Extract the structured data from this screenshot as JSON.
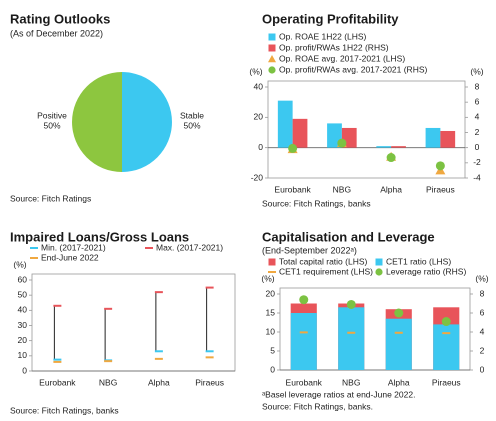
{
  "chart_data": [
    {
      "type": "pie",
      "title": "Rating Outlooks",
      "subtitle": "(As of December 2022)",
      "categories": [
        "Stable",
        "Positive"
      ],
      "values": [
        50,
        50
      ],
      "value_labels": [
        "50%",
        "50%"
      ],
      "colors": [
        "#3cc8f0",
        "#8dc63f"
      ],
      "source": "Source: Fitch Ratings"
    },
    {
      "type": "bar",
      "title": "Operating Profitability",
      "categories": [
        "Eurobank",
        "NBG",
        "Alpha",
        "Piraeus"
      ],
      "series": [
        {
          "name": "Op. ROAE 1H22 (LHS)",
          "color": "#3cc8f0",
          "kind": "bar",
          "values": [
            31,
            16,
            1,
            13
          ]
        },
        {
          "name": "Op. profit/RWAs 1H22 (RHS)",
          "color": "#e8545a",
          "kind": "bar",
          "axis": "y2",
          "values": [
            3.8,
            2.6,
            0.2,
            2.2
          ]
        },
        {
          "name": "Op. ROAE avg. 2017-2021 (LHS)",
          "color": "#f0a840",
          "kind": "triangle",
          "values": [
            -1,
            3,
            -6,
            -15
          ]
        },
        {
          "name": "Op. profit/RWAs avg. 2017-2021 (RHS)",
          "color": "#7cc242",
          "kind": "circle",
          "axis": "y2",
          "values": [
            -0.1,
            0.6,
            -1.3,
            -2.4
          ]
        }
      ],
      "ylabel": "(%)",
      "ylim": [
        -20,
        40
      ],
      "yticks": [
        -20,
        0,
        20,
        40
      ],
      "y2label": "(%)",
      "y2lim": [
        -4,
        8
      ],
      "y2ticks": [
        -4,
        -2,
        0,
        2,
        4,
        6,
        8
      ],
      "source": "Source: Fitch Ratings, banks"
    },
    {
      "type": "range",
      "title": "Impaired Loans/Gross Loans",
      "categories": [
        "Eurobank",
        "NBG",
        "Alpha",
        "Piraeus"
      ],
      "series": [
        {
          "name": "Min. (2017-2021)",
          "color": "#3cc8f0",
          "kind": "dash",
          "values": [
            7.5,
            7,
            13,
            13
          ]
        },
        {
          "name": "Max. (2017-2021)",
          "color": "#e8545a",
          "kind": "dash",
          "values": [
            43,
            41,
            52,
            55
          ]
        },
        {
          "name": "End-June 2022",
          "color": "#f0a840",
          "kind": "dash",
          "values": [
            6,
            6.5,
            8,
            9
          ]
        }
      ],
      "ylabel": "(%)",
      "ylim": [
        0,
        60
      ],
      "yticks": [
        0,
        10,
        20,
        30,
        40,
        50,
        60
      ],
      "source": "Source: Fitch Ratings, banks"
    },
    {
      "type": "bar",
      "overlap": true,
      "title": "Capitalisation and Leverage",
      "subtitle": "(End-September 2022ᵃ)",
      "categories": [
        "Eurobank",
        "NBG",
        "Alpha",
        "Piraeus"
      ],
      "series": [
        {
          "name": "Total capital ratio (LHS)",
          "color": "#e8545a",
          "kind": "bar",
          "values": [
            17.5,
            17.5,
            16,
            16.5
          ]
        },
        {
          "name": "CET1 ratio (LHS)",
          "color": "#3cc8f0",
          "kind": "bar",
          "values": [
            15,
            16.5,
            13.5,
            12
          ]
        },
        {
          "name": "CET1 requirement (LHS)",
          "color": "#f0a840",
          "kind": "dash",
          "values": [
            9.9,
            9.8,
            9.8,
            9.7
          ]
        },
        {
          "name": "Leverage ratio (RHS)",
          "color": "#7cc242",
          "kind": "circle",
          "axis": "y2",
          "values": [
            7.4,
            6.9,
            6.0,
            5.1
          ]
        }
      ],
      "ylabel": "(%)",
      "ylim": [
        0,
        20
      ],
      "yticks": [
        0,
        5,
        10,
        15,
        20
      ],
      "y2label": "(%)",
      "y2lim": [
        0,
        8
      ],
      "y2ticks": [
        0,
        2,
        4,
        6,
        8
      ],
      "footnote": "ᵃBasel leverage ratios at end-June 2022.",
      "source": "Source: Fitch Ratings, banks."
    }
  ]
}
